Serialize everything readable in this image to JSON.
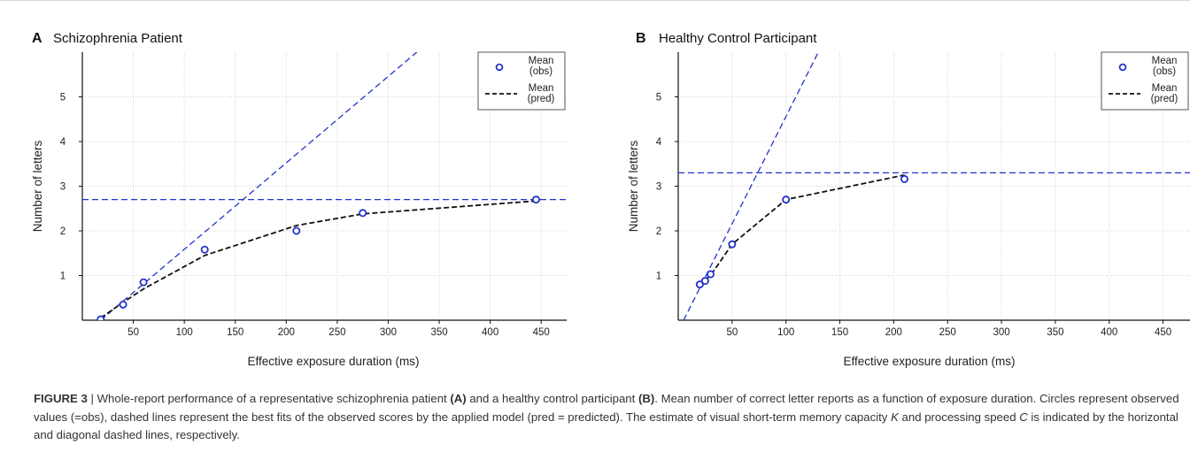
{
  "chart_data": [
    {
      "type": "line",
      "panel_letter": "A",
      "title": "Schizophrenia Patient",
      "xlabel": "Effective exposure duration (ms)",
      "ylabel": "Number of letters",
      "xlim": [
        0,
        475
      ],
      "ylim": [
        0,
        6
      ],
      "xticks": [
        50,
        100,
        150,
        200,
        250,
        300,
        350,
        400,
        450
      ],
      "yticks": [
        1,
        2,
        3,
        4,
        5
      ],
      "grid": true,
      "legend_position": "top-right",
      "legend": [
        {
          "marker": "circle",
          "label_line1": "Mean",
          "label_line2": "(obs)"
        },
        {
          "marker": "dashed-line",
          "label_line1": "Mean",
          "label_line2": "(pred)"
        }
      ],
      "series": [
        {
          "name": "Mean (obs)",
          "kind": "scatter",
          "color": "#2233cc",
          "x": [
            18,
            40,
            60,
            120,
            210,
            275,
            445
          ],
          "y": [
            0.02,
            0.35,
            0.85,
            1.58,
            2.0,
            2.4,
            2.7
          ]
        },
        {
          "name": "Mean (pred)",
          "kind": "line",
          "color": "#111111",
          "x": [
            18,
            40,
            60,
            120,
            210,
            275,
            445
          ],
          "y": [
            0.05,
            0.4,
            0.7,
            1.45,
            2.12,
            2.38,
            2.67
          ]
        }
      ],
      "reference_lines": [
        {
          "kind": "horizontal",
          "y": 2.7,
          "color": "#2233cc"
        },
        {
          "kind": "diagonal",
          "x1": 18,
          "y1": 0,
          "x2": 328,
          "y2": 6.0,
          "color": "#2233cc"
        }
      ]
    },
    {
      "type": "line",
      "panel_letter": "B",
      "title": "Healthy Control Participant",
      "xlabel": "Effective exposure duration (ms)",
      "ylabel": "Number of letters",
      "xlim": [
        0,
        475
      ],
      "ylim": [
        0,
        6
      ],
      "xticks": [
        50,
        100,
        150,
        200,
        250,
        300,
        350,
        400,
        450
      ],
      "yticks": [
        1,
        2,
        3,
        4,
        5
      ],
      "grid": true,
      "legend_position": "top-right",
      "legend": [
        {
          "marker": "circle",
          "label_line1": "Mean",
          "label_line2": "(obs)"
        },
        {
          "marker": "dashed-line",
          "label_line1": "Mean",
          "label_line2": "(pred)"
        }
      ],
      "series": [
        {
          "name": "Mean (obs)",
          "kind": "scatter",
          "color": "#2233cc",
          "x": [
            20,
            25,
            30,
            50,
            100,
            210
          ],
          "y": [
            0.8,
            0.88,
            1.03,
            1.7,
            2.7,
            3.16
          ]
        },
        {
          "name": "Mean (pred)",
          "kind": "line",
          "color": "#111111",
          "x": [
            20,
            25,
            30,
            50,
            100,
            210
          ],
          "y": [
            0.78,
            0.9,
            1.0,
            1.7,
            2.7,
            3.25
          ]
        }
      ],
      "reference_lines": [
        {
          "kind": "horizontal",
          "y": 3.3,
          "color": "#2233cc"
        },
        {
          "kind": "diagonal",
          "x1": 5,
          "y1": 0,
          "x2": 130,
          "y2": 6.0,
          "color": "#2233cc"
        }
      ]
    }
  ],
  "caption": {
    "label": "FIGURE 3",
    "sep": " | ",
    "t1": "Whole-report performance of a representative schizophrenia patient ",
    "a": "(A)",
    "t2": " and a healthy control participant ",
    "b": "(B)",
    "t3": ". Mean number of correct letter reports as a function of exposure duration. Circles represent observed values (=obs), dashed lines represent the best fits of the observed scores by the applied model (pred = predicted). The estimate of visual short-term memory capacity ",
    "k": "K",
    "t4": " and processing speed ",
    "c": "C",
    "t5": " is indicated by the horizontal and diagonal dashed lines, respectively."
  }
}
